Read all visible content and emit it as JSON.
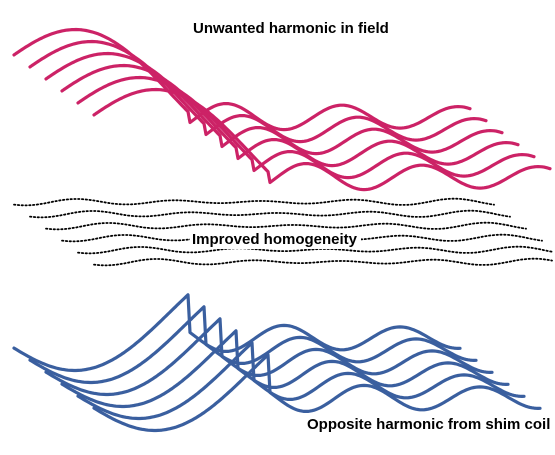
{
  "labels": {
    "top": "Unwanted harmonic in field",
    "middle": "Improved homogeneity",
    "bottom": "Opposite harmonic from shim coil"
  },
  "colors": {
    "unwanted": "#cc2266",
    "improved": "#000000",
    "opposite": "#3a5f9f"
  }
}
